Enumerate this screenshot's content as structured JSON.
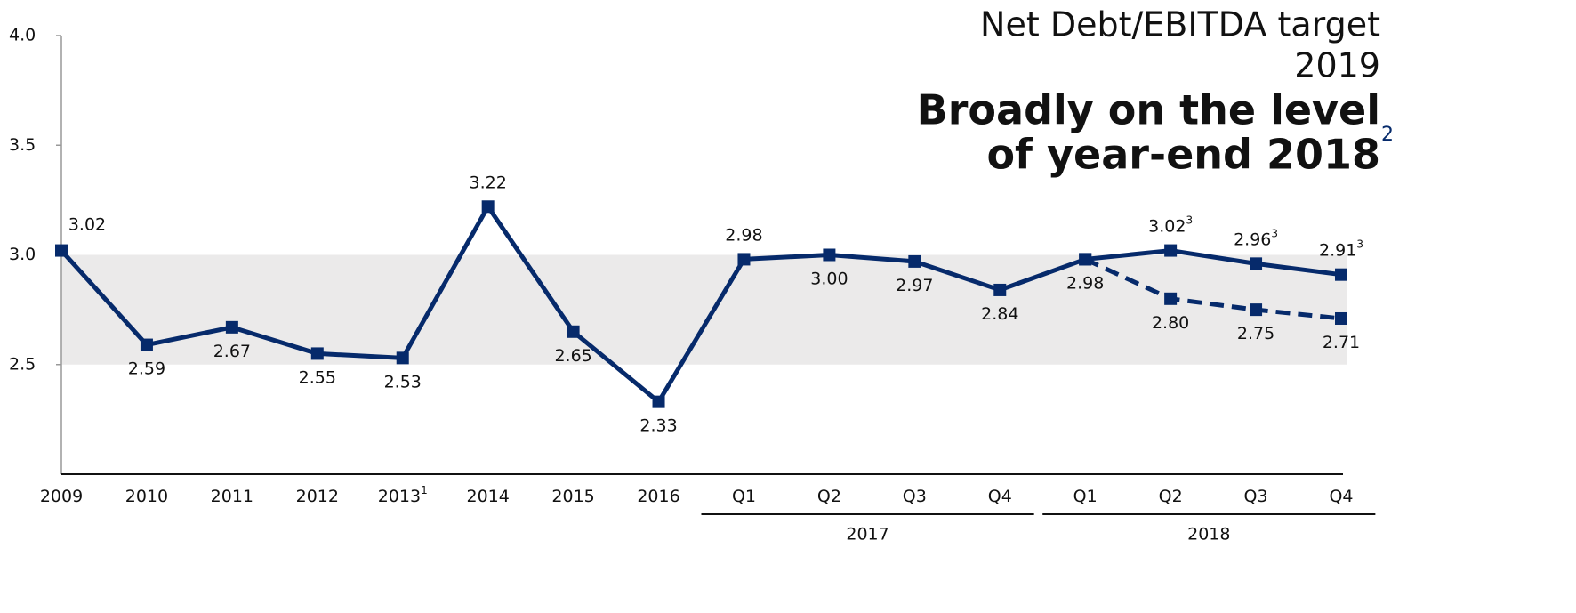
{
  "chart_data": {
    "type": "line",
    "title": [
      "Net Debt/EBITDA target",
      "2019"
    ],
    "subtitle": [
      "Broadly on the level",
      "of year-end 2018"
    ],
    "subtitle_note": "2",
    "categories": [
      "2009",
      "2010",
      "2011",
      "2012",
      "2013",
      "2014",
      "2015",
      "2016",
      "Q1",
      "Q2",
      "Q3",
      "Q4",
      "Q1",
      "Q2",
      "Q3",
      "Q4"
    ],
    "category_notes": [
      null,
      null,
      null,
      null,
      "1",
      null,
      null,
      null,
      null,
      null,
      null,
      null,
      null,
      null,
      null,
      null
    ],
    "groups": [
      {
        "label": "2017",
        "start": 8,
        "end": 11
      },
      {
        "label": "2018",
        "start": 12,
        "end": 15
      }
    ],
    "series": [
      {
        "color": "#062a6b",
        "dashed": false,
        "values": [
          3.02,
          2.59,
          2.67,
          2.55,
          2.53,
          3.22,
          2.65,
          2.33,
          2.98,
          3.0,
          2.97,
          2.84,
          2.98,
          3.02,
          2.96,
          2.91
        ],
        "value_labels": [
          "3.02",
          "2.59",
          "2.67",
          "2.55",
          "2.53",
          "3.22",
          "2.65",
          "2.33",
          "2.98",
          "3.00",
          "2.97",
          "2.84",
          "2.98",
          "3.02",
          "2.96",
          "2.91"
        ],
        "value_notes": [
          null,
          null,
          null,
          null,
          null,
          null,
          null,
          null,
          null,
          null,
          null,
          null,
          null,
          "3",
          "3",
          "3"
        ]
      },
      {
        "color": "#062a6b",
        "dashed": true,
        "values": [
          null,
          null,
          null,
          null,
          null,
          null,
          null,
          null,
          null,
          null,
          null,
          null,
          2.98,
          2.8,
          2.75,
          2.71
        ],
        "value_labels": [
          null,
          null,
          null,
          null,
          null,
          null,
          null,
          null,
          null,
          null,
          null,
          null,
          null,
          "2.80",
          "2.75",
          "2.71"
        ]
      }
    ],
    "band": [
      2.5,
      3.0
    ],
    "band_color": "#ebeaea",
    "ylim": [
      2.0,
      4.0
    ],
    "yticks": [
      2.5,
      {
        "value": 3,
        "label": "3.0"
      },
      3.5,
      {
        "value": 4,
        "label": "4.0"
      }
    ],
    "grid": false
  }
}
